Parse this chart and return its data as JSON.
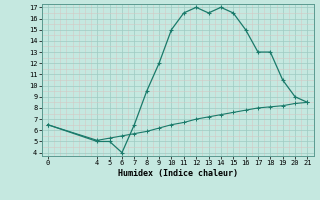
{
  "xlabel": "Humidex (Indice chaleur)",
  "bg_color": "#c5e8e0",
  "line_color": "#1a7a6a",
  "major_grid_color": "#a8d4cc",
  "minor_grid_color": "#d4ebe5",
  "upper_x": [
    0,
    4,
    5,
    6,
    7,
    8,
    9,
    10,
    11,
    12,
    13,
    14,
    15,
    16,
    17,
    18,
    19,
    20,
    21
  ],
  "upper_y": [
    6.5,
    5.0,
    5.0,
    4.0,
    6.5,
    9.5,
    12.0,
    15.0,
    16.5,
    17.0,
    16.5,
    17.0,
    16.5,
    15.0,
    13.0,
    13.0,
    10.5,
    9.0,
    8.5
  ],
  "lower_x": [
    0,
    4,
    5,
    6,
    7,
    8,
    9,
    10,
    11,
    12,
    13,
    14,
    15,
    16,
    17,
    18,
    19,
    20,
    21
  ],
  "lower_y": [
    6.5,
    5.1,
    5.3,
    5.5,
    5.7,
    5.9,
    6.2,
    6.5,
    6.7,
    7.0,
    7.2,
    7.4,
    7.6,
    7.8,
    8.0,
    8.1,
    8.2,
    8.4,
    8.5
  ],
  "xlim": [
    -0.5,
    21.5
  ],
  "ylim": [
    3.7,
    17.3
  ],
  "yticks": [
    4,
    5,
    6,
    7,
    8,
    9,
    10,
    11,
    12,
    13,
    14,
    15,
    16,
    17
  ],
  "xticks": [
    0,
    4,
    5,
    6,
    7,
    8,
    9,
    10,
    11,
    12,
    13,
    14,
    15,
    16,
    17,
    18,
    19,
    20,
    21
  ]
}
